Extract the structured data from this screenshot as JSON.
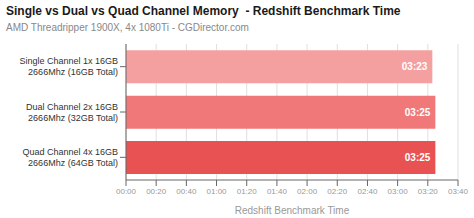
{
  "chart_data": {
    "type": "bar",
    "orientation": "horizontal",
    "title": "Single vs Dual vs Quad Channel Memory  - Redshift Benchmark Time",
    "subtitle": "AMD Threadripper 1900X, 4x 1080Ti - CGDirector.com",
    "xlabel": "Redshift Benchmark Time",
    "categories": [
      "Single Channel 1x 16GB\n2666Mhz (16GB Total)",
      "Dual Channel 2x 16GB\n2666Mhz (32GB Total)",
      "Quad Channel 4x 16GB\n2666Mhz (64GB Total)"
    ],
    "values": [
      203,
      205,
      205
    ],
    "value_labels": [
      "03:23",
      "03:25",
      "03:25"
    ],
    "data_labels": true,
    "colors": [
      "#f5a0a0",
      "#f07878",
      "#e85252"
    ],
    "xlim": [
      0,
      220
    ],
    "xticks": [
      {
        "value": 0,
        "label": "00:00"
      },
      {
        "value": 20,
        "label": "00:20"
      },
      {
        "value": 40,
        "label": "00:40"
      },
      {
        "value": 60,
        "label": "01:00"
      },
      {
        "value": 80,
        "label": "01:20"
      },
      {
        "value": 100,
        "label": "01:40"
      },
      {
        "value": 120,
        "label": "02:00"
      },
      {
        "value": 140,
        "label": "02:20"
      },
      {
        "value": 160,
        "label": "02:40"
      },
      {
        "value": 180,
        "label": "03:00"
      },
      {
        "value": 200,
        "label": "03:20"
      },
      {
        "value": 220,
        "label": "03:40"
      }
    ],
    "grid": true
  }
}
